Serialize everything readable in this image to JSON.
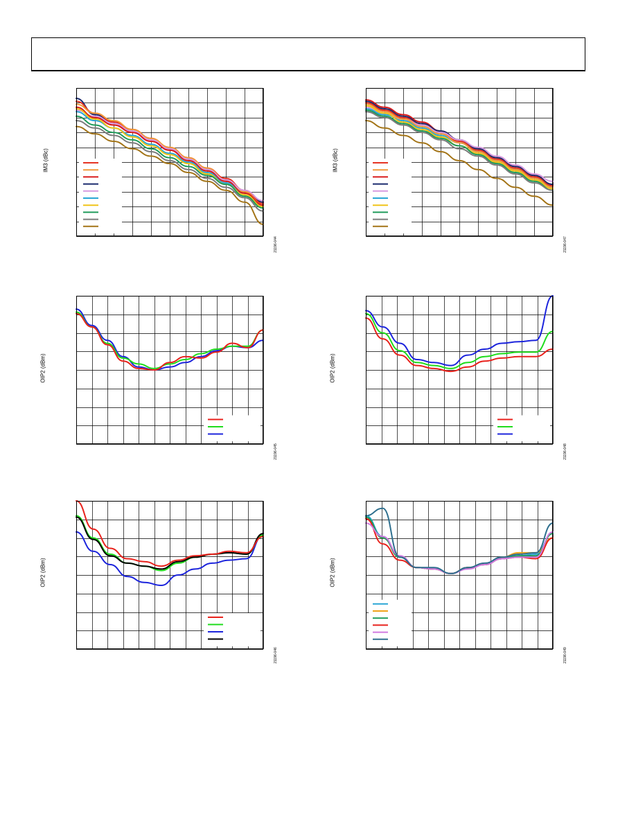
{
  "page": {
    "header_box": ""
  },
  "charts": [
    {
      "id": "c1",
      "ylabel": "IM3 (dBc)",
      "figure_id": "21196-044",
      "grid": {
        "cols": 10,
        "rows": 10
      },
      "legend": {
        "position": "lower-left",
        "colors": [
          "#e53222",
          "#f29a3a",
          "#d91a1a",
          "#1a2a6e",
          "#d79be0",
          "#2aa6d5",
          "#f0c419",
          "#1f9b5a",
          "#7c7c7c",
          "#a37417"
        ]
      },
      "series": [
        {
          "color": "#1a2a6e",
          "y": [
            0.93,
            0.82,
            0.77,
            0.72,
            0.66,
            0.59,
            0.52,
            0.45,
            0.38,
            0.31,
            0.23
          ]
        },
        {
          "color": "#e53222",
          "y": [
            0.91,
            0.83,
            0.77,
            0.72,
            0.66,
            0.59,
            0.53,
            0.46,
            0.39,
            0.31,
            0.22
          ]
        },
        {
          "color": "#f29a3a",
          "y": [
            0.89,
            0.83,
            0.78,
            0.72,
            0.66,
            0.6,
            0.53,
            0.46,
            0.38,
            0.3,
            0.21
          ]
        },
        {
          "color": "#d79be0",
          "y": [
            0.85,
            0.81,
            0.76,
            0.71,
            0.65,
            0.59,
            0.52,
            0.45,
            0.38,
            0.31,
            0.24
          ]
        },
        {
          "color": "#d91a1a",
          "y": [
            0.87,
            0.8,
            0.75,
            0.7,
            0.64,
            0.58,
            0.51,
            0.44,
            0.37,
            0.29,
            0.21
          ]
        },
        {
          "color": "#2aa6d5",
          "y": [
            0.84,
            0.78,
            0.73,
            0.68,
            0.62,
            0.56,
            0.5,
            0.43,
            0.36,
            0.28,
            0.2
          ]
        },
        {
          "color": "#f0c419",
          "y": [
            0.86,
            0.79,
            0.73,
            0.67,
            0.61,
            0.55,
            0.49,
            0.42,
            0.35,
            0.28,
            0.2
          ]
        },
        {
          "color": "#1f9b5a",
          "y": [
            0.81,
            0.75,
            0.7,
            0.65,
            0.59,
            0.53,
            0.47,
            0.41,
            0.35,
            0.27,
            0.19
          ]
        },
        {
          "color": "#7c7c7c",
          "y": [
            0.78,
            0.73,
            0.68,
            0.63,
            0.57,
            0.51,
            0.45,
            0.39,
            0.33,
            0.26,
            0.17
          ]
        },
        {
          "color": "#a37417",
          "y": [
            0.74,
            0.69,
            0.64,
            0.59,
            0.54,
            0.49,
            0.43,
            0.37,
            0.31,
            0.23,
            0.08
          ]
        }
      ]
    },
    {
      "id": "c2",
      "ylabel": "IM3 (dBc)",
      "figure_id": "21196-047",
      "grid": {
        "cols": 10,
        "rows": 10
      },
      "legend": {
        "position": "lower-left",
        "colors": [
          "#e53222",
          "#f29a3a",
          "#d91a1a",
          "#1a2a6e",
          "#d79be0",
          "#2aa6d5",
          "#f0c419",
          "#1f9b5a",
          "#7c7c7c",
          "#a37417"
        ]
      },
      "series": [
        {
          "color": "#d91a1a",
          "y": [
            0.92,
            0.87,
            0.82,
            0.77,
            0.71,
            0.65,
            0.59,
            0.53,
            0.47,
            0.41,
            0.35
          ]
        },
        {
          "color": "#1a2a6e",
          "y": [
            0.91,
            0.86,
            0.81,
            0.76,
            0.71,
            0.65,
            0.59,
            0.53,
            0.47,
            0.41,
            0.35
          ]
        },
        {
          "color": "#e53222",
          "y": [
            0.9,
            0.85,
            0.8,
            0.75,
            0.7,
            0.64,
            0.58,
            0.52,
            0.46,
            0.4,
            0.34
          ]
        },
        {
          "color": "#d79be0",
          "y": [
            0.87,
            0.83,
            0.79,
            0.75,
            0.7,
            0.65,
            0.6,
            0.54,
            0.48,
            0.42,
            0.37
          ]
        },
        {
          "color": "#2aa6d5",
          "y": [
            0.86,
            0.82,
            0.78,
            0.73,
            0.68,
            0.63,
            0.57,
            0.51,
            0.45,
            0.39,
            0.33
          ]
        },
        {
          "color": "#f29a3a",
          "y": [
            0.89,
            0.84,
            0.79,
            0.74,
            0.69,
            0.63,
            0.57,
            0.51,
            0.45,
            0.39,
            0.33
          ]
        },
        {
          "color": "#f0c419",
          "y": [
            0.88,
            0.83,
            0.77,
            0.72,
            0.67,
            0.61,
            0.56,
            0.5,
            0.44,
            0.38,
            0.32
          ]
        },
        {
          "color": "#1f9b5a",
          "y": [
            0.85,
            0.81,
            0.76,
            0.71,
            0.66,
            0.61,
            0.55,
            0.49,
            0.43,
            0.37,
            0.31
          ]
        },
        {
          "color": "#7c7c7c",
          "y": [
            0.84,
            0.8,
            0.75,
            0.7,
            0.65,
            0.59,
            0.54,
            0.48,
            0.42,
            0.36,
            0.31
          ]
        },
        {
          "color": "#a37417",
          "y": [
            0.78,
            0.73,
            0.68,
            0.63,
            0.57,
            0.51,
            0.45,
            0.39,
            0.33,
            0.27,
            0.21
          ]
        }
      ]
    },
    {
      "id": "c3",
      "ylabel": "OIP2 (dBm)",
      "figure_id": "21196-045",
      "grid": {
        "cols": 12,
        "rows": 8
      },
      "legend": {
        "position": "lower-right",
        "colors": [
          "#e8221c",
          "#1fdc1c",
          "#1c24dc"
        ]
      },
      "series": [
        {
          "color": "#1c24dc",
          "y": [
            0.91,
            0.8,
            0.7,
            0.59,
            0.52,
            0.5,
            0.52,
            0.55,
            0.59,
            0.63,
            0.66,
            0.65,
            0.7
          ]
        },
        {
          "color": "#1fdc1c",
          "y": [
            0.89,
            0.79,
            0.68,
            0.58,
            0.54,
            0.51,
            0.54,
            0.57,
            0.61,
            0.64,
            0.66,
            0.66,
            0.77
          ]
        },
        {
          "color": "#e8221c",
          "y": [
            0.88,
            0.79,
            0.67,
            0.56,
            0.51,
            0.5,
            0.55,
            0.59,
            0.58,
            0.62,
            0.68,
            0.65,
            0.77
          ]
        }
      ]
    },
    {
      "id": "c4",
      "ylabel": "OIP2 (dBm)",
      "figure_id": "21196-048",
      "grid": {
        "cols": 12,
        "rows": 8
      },
      "legend": {
        "position": "lower-right",
        "colors": [
          "#e8221c",
          "#1fdc1c",
          "#1c24dc"
        ]
      },
      "series": [
        {
          "color": "#1c24dc",
          "y": [
            0.9,
            0.79,
            0.68,
            0.57,
            0.55,
            0.53,
            0.6,
            0.64,
            0.68,
            0.69,
            0.7,
            1.0
          ]
        },
        {
          "color": "#1fdc1c",
          "y": [
            0.88,
            0.75,
            0.63,
            0.55,
            0.53,
            0.51,
            0.55,
            0.59,
            0.61,
            0.62,
            0.62,
            0.76
          ]
        },
        {
          "color": "#e8221c",
          "y": [
            0.85,
            0.71,
            0.6,
            0.53,
            0.51,
            0.49,
            0.52,
            0.56,
            0.58,
            0.59,
            0.59,
            0.64
          ]
        }
      ]
    },
    {
      "id": "c5",
      "ylabel": "OIP2 (dBm)",
      "figure_id": "21196-046",
      "grid": {
        "cols": 12,
        "rows": 8
      },
      "legend": {
        "position": "lower-right",
        "colors": [
          "#e8221c",
          "#1fdc1c",
          "#1c24dc",
          "#000000"
        ]
      },
      "series": [
        {
          "color": "#1c24dc",
          "y": [
            0.79,
            0.66,
            0.57,
            0.49,
            0.45,
            0.43,
            0.5,
            0.54,
            0.58,
            0.6,
            0.61,
            0.77
          ]
        },
        {
          "color": "#1fdc1c",
          "y": [
            0.9,
            0.75,
            0.64,
            0.58,
            0.56,
            0.53,
            0.58,
            0.62,
            0.64,
            0.65,
            0.64,
            0.77
          ]
        },
        {
          "color": "#000000",
          "y": [
            0.89,
            0.74,
            0.63,
            0.58,
            0.56,
            0.54,
            0.59,
            0.62,
            0.64,
            0.65,
            0.64,
            0.78
          ]
        },
        {
          "color": "#e8221c",
          "y": [
            1.0,
            0.81,
            0.68,
            0.61,
            0.59,
            0.56,
            0.6,
            0.63,
            0.64,
            0.66,
            0.65,
            0.76
          ]
        }
      ]
    },
    {
      "id": "c6",
      "ylabel": "OIP2 (dBm)",
      "figure_id": "21196-049",
      "grid": {
        "cols": 12,
        "rows": 8
      },
      "legend": {
        "position": "lower-left",
        "colors": [
          "#2aa6d5",
          "#f0a21a",
          "#1f9b5a",
          "#e8221c",
          "#d07ae0",
          "#2e6f8e"
        ]
      },
      "series": [
        {
          "color": "#2aa6d5",
          "y": [
            0.9,
            0.76,
            0.62,
            0.55,
            0.54,
            0.51,
            0.55,
            0.57,
            0.62,
            0.63,
            0.64,
            0.78
          ]
        },
        {
          "color": "#f0a21a",
          "y": [
            0.88,
            0.75,
            0.62,
            0.55,
            0.54,
            0.51,
            0.55,
            0.57,
            0.62,
            0.65,
            0.65,
            0.75
          ]
        },
        {
          "color": "#1f9b5a",
          "y": [
            0.89,
            0.75,
            0.62,
            0.55,
            0.54,
            0.51,
            0.55,
            0.57,
            0.61,
            0.63,
            0.63,
            0.78
          ]
        },
        {
          "color": "#e8221c",
          "y": [
            0.88,
            0.71,
            0.6,
            0.55,
            0.54,
            0.51,
            0.55,
            0.57,
            0.61,
            0.62,
            0.61,
            0.75
          ]
        },
        {
          "color": "#d07ae0",
          "y": [
            0.85,
            0.76,
            0.63,
            0.55,
            0.54,
            0.51,
            0.54,
            0.57,
            0.61,
            0.62,
            0.62,
            0.79
          ]
        },
        {
          "color": "#2e6f8e",
          "y": [
            0.9,
            0.95,
            0.62,
            0.55,
            0.55,
            0.51,
            0.55,
            0.58,
            0.62,
            0.64,
            0.65,
            0.85
          ]
        }
      ]
    }
  ]
}
